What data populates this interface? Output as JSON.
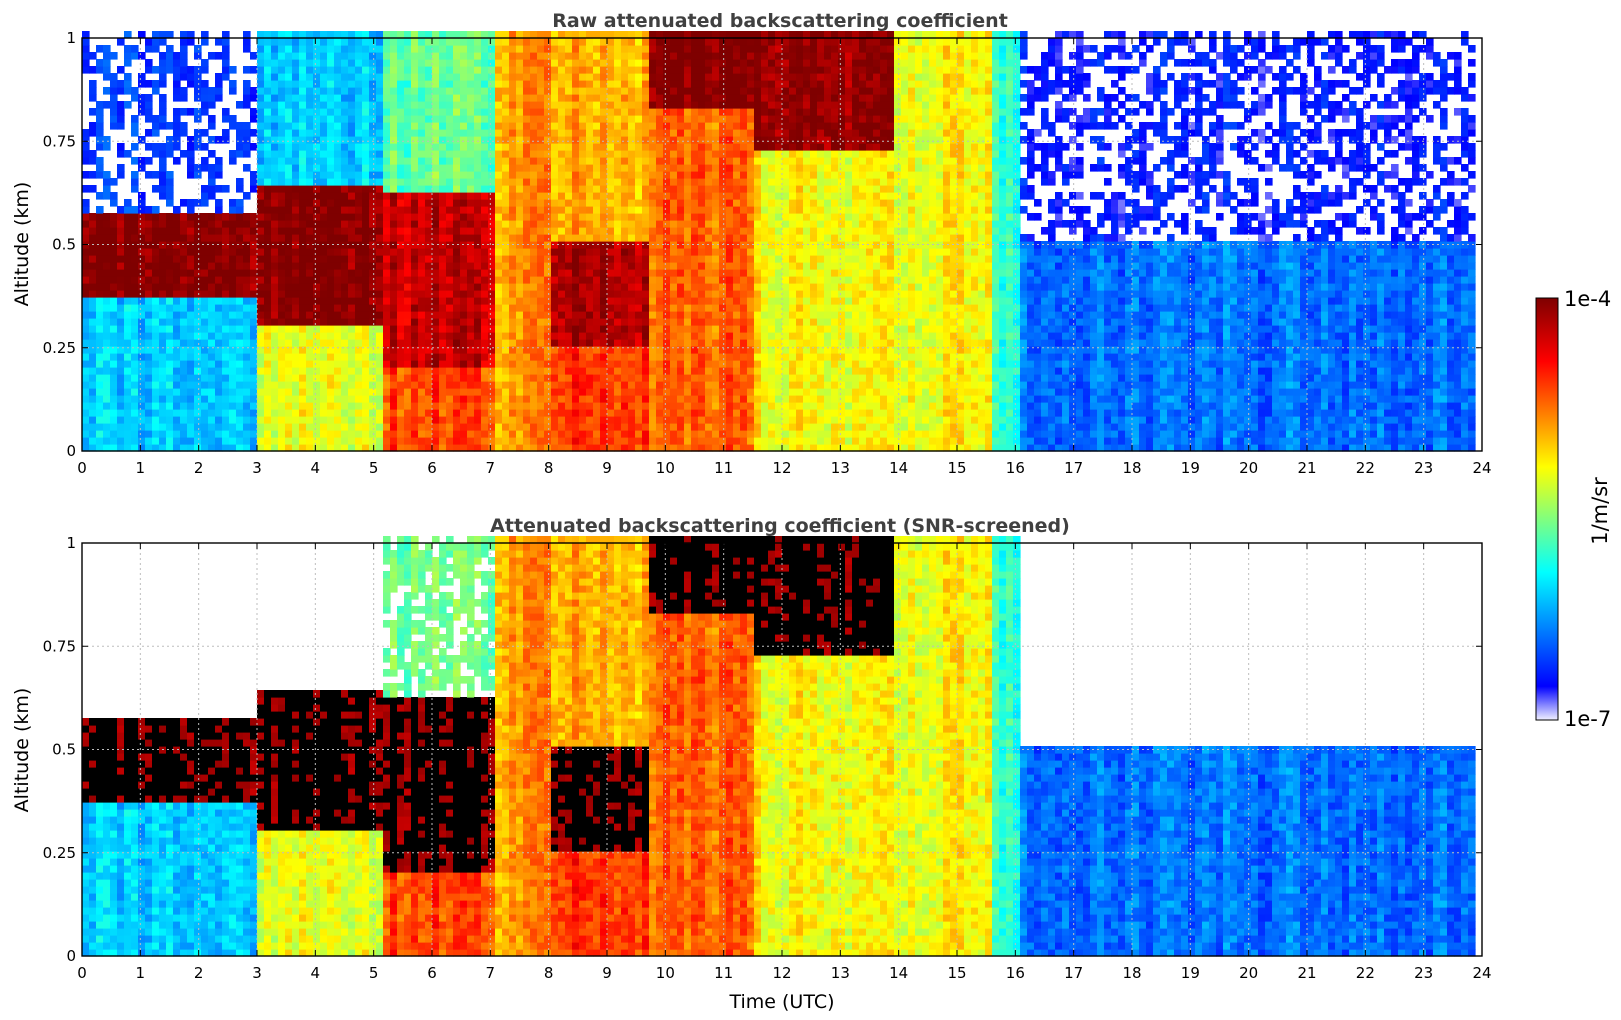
{
  "chart_data": [
    {
      "type": "heatmap",
      "title": "Raw attenuated backscattering coefficient",
      "xlabel": "",
      "ylabel": "Altitude (km)",
      "xlim": [
        0,
        24
      ],
      "ylim": [
        0,
        1
      ],
      "x_ticks": [
        "0",
        "1",
        "2",
        "3",
        "4",
        "5",
        "6",
        "7",
        "8",
        "9",
        "10",
        "11",
        "12",
        "13",
        "14",
        "15",
        "16",
        "17",
        "18",
        "19",
        "20",
        "21",
        "22",
        "23",
        "24"
      ],
      "y_ticks": [
        "0",
        "0.25",
        "0.5",
        "0.75",
        "1"
      ],
      "grid": true,
      "data_end_time": 23.8,
      "screened": false,
      "regions": [
        {
          "t0": 0.0,
          "t1": 2.9,
          "layer_bottom": 0.36,
          "layer_top": 0.56,
          "layer_level": 1.0,
          "below_level": 0.3,
          "above_level": 0.12
        },
        {
          "t0": 2.9,
          "t1": 5.1,
          "layer_bottom": 0.3,
          "layer_top": 0.63,
          "layer_level": 1.0,
          "below_level": 0.58,
          "above_level": 0.3
        },
        {
          "t0": 5.1,
          "t1": 7.0,
          "layer_bottom": 0.2,
          "layer_top": 0.62,
          "layer_level": 0.92,
          "below_level": 0.78,
          "above_level": 0.45
        },
        {
          "t0": 7.0,
          "t1": 8.0,
          "layer_bottom": 0.0,
          "layer_top": 1.0,
          "layer_level": 0.7,
          "below_level": 0.7,
          "above_level": 0.55
        },
        {
          "t0": 8.0,
          "t1": 9.7,
          "layer_bottom": 0.25,
          "layer_top": 0.5,
          "layer_level": 0.95,
          "below_level": 0.8,
          "above_level": 0.68
        },
        {
          "t0": 9.7,
          "t1": 11.5,
          "layer_bottom": 0.82,
          "layer_top": 1.0,
          "layer_level": 1.0,
          "below_level": 0.75,
          "above_level": 0.75
        },
        {
          "t0": 11.5,
          "t1": 13.8,
          "layer_bottom": 0.72,
          "layer_top": 1.0,
          "layer_level": 0.98,
          "below_level": 0.6,
          "above_level": 0.6
        },
        {
          "t0": 13.8,
          "t1": 15.5,
          "layer_bottom": 0.0,
          "layer_top": 1.0,
          "layer_level": 0.6,
          "below_level": 0.6,
          "above_level": 0.55
        },
        {
          "t0": 15.5,
          "t1": 16.0,
          "layer_bottom": 0.0,
          "layer_top": 1.0,
          "layer_level": 0.4,
          "below_level": 0.4,
          "above_level": 0.4
        },
        {
          "t0": 16.0,
          "t1": 23.8,
          "layer_bottom": 0.0,
          "layer_top": 0.5,
          "layer_level": 0.2,
          "below_level": 0.2,
          "above_level": 0.08
        }
      ]
    },
    {
      "type": "heatmap",
      "title": "Attenuated backscattering coefficient (SNR-screened)",
      "xlabel": "Time (UTC)",
      "ylabel": "Altitude (km)",
      "xlim": [
        0,
        24
      ],
      "ylim": [
        0,
        1
      ],
      "x_ticks": [
        "0",
        "1",
        "2",
        "3",
        "4",
        "5",
        "6",
        "7",
        "8",
        "9",
        "10",
        "11",
        "12",
        "13",
        "14",
        "15",
        "16",
        "17",
        "18",
        "19",
        "20",
        "21",
        "22",
        "23",
        "24"
      ],
      "y_ticks": [
        "0",
        "0.25",
        "0.5",
        "0.75",
        "1"
      ],
      "grid": true,
      "data_end_time": 23.8,
      "screened": true,
      "saturated_color": "#000000",
      "regions": [
        {
          "t0": 0.0,
          "t1": 2.9,
          "layer_bottom": 0.36,
          "layer_top": 0.56,
          "layer_level": 1.0,
          "below_level": 0.3,
          "above_level": null
        },
        {
          "t0": 2.9,
          "t1": 5.1,
          "layer_bottom": 0.3,
          "layer_top": 0.63,
          "layer_level": 1.0,
          "below_level": 0.58,
          "above_level": null
        },
        {
          "t0": 5.1,
          "t1": 7.0,
          "layer_bottom": 0.2,
          "layer_top": 0.62,
          "layer_level": 1.0,
          "below_level": 0.78,
          "above_level": 0.45
        },
        {
          "t0": 7.0,
          "t1": 8.0,
          "layer_bottom": 0.0,
          "layer_top": 1.0,
          "layer_level": 0.7,
          "below_level": 0.7,
          "above_level": 0.55
        },
        {
          "t0": 8.0,
          "t1": 9.7,
          "layer_bottom": 0.25,
          "layer_top": 0.5,
          "layer_level": 1.0,
          "below_level": 0.8,
          "above_level": 0.68
        },
        {
          "t0": 9.7,
          "t1": 11.5,
          "layer_bottom": 0.82,
          "layer_top": 1.0,
          "layer_level": 1.0,
          "below_level": 0.75,
          "above_level": 0.75
        },
        {
          "t0": 11.5,
          "t1": 13.8,
          "layer_bottom": 0.72,
          "layer_top": 1.0,
          "layer_level": 1.0,
          "below_level": 0.6,
          "above_level": 0.6
        },
        {
          "t0": 13.8,
          "t1": 15.5,
          "layer_bottom": 0.0,
          "layer_top": 1.0,
          "layer_level": 0.6,
          "below_level": 0.6,
          "above_level": 0.55
        },
        {
          "t0": 15.5,
          "t1": 16.0,
          "layer_bottom": 0.0,
          "layer_top": 1.0,
          "layer_level": 0.4,
          "below_level": 0.4,
          "above_level": 0.4
        },
        {
          "t0": 16.0,
          "t1": 23.8,
          "layer_bottom": 0.0,
          "layer_top": 0.5,
          "layer_level": 0.2,
          "below_level": 0.2,
          "above_level": null
        }
      ]
    }
  ],
  "colorbar": {
    "label": "1/m/sr",
    "max_label": "1e-4",
    "min_label": "1e-7",
    "colormap": "jet",
    "colors": [
      "#f0f0ff",
      "#0000ff",
      "#00ffff",
      "#ffff00",
      "#ff0000",
      "#7f0000"
    ]
  }
}
